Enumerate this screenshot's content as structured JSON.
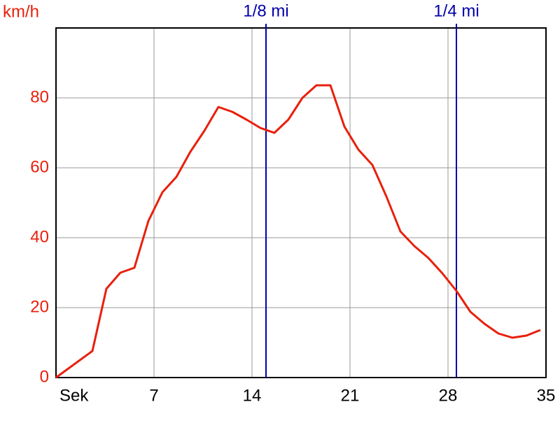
{
  "chart_data": {
    "type": "line",
    "y_label": "km/h",
    "x": [
      0,
      2.6,
      3.6,
      4.6,
      5.6,
      6.6,
      7.6,
      8.6,
      9.6,
      10.6,
      11.6,
      12.6,
      13.6,
      14.6,
      15.6,
      16.6,
      17.6,
      18.6,
      19.6,
      20.6,
      21.6,
      22.6,
      23.6,
      24.6,
      25.6,
      26.6,
      27.6,
      28.6,
      29.6,
      30.6,
      31.6,
      32.6,
      33.6,
      34.6
    ],
    "series": [
      {
        "color": "#e8200c",
        "values": [
          0,
          7.6,
          25.4,
          30,
          31.4,
          44.8,
          53,
          57.4,
          64.6,
          70.6,
          77.4,
          76,
          73.8,
          71.4,
          70,
          73.8,
          80,
          83.6,
          83.6,
          71.8,
          65.2,
          60.8,
          51.8,
          41.8,
          37.6,
          34.2,
          29.8,
          24.8,
          18.8,
          15.4,
          12.6,
          11.4,
          12,
          13.6
        ]
      }
    ],
    "xlim": [
      0,
      35
    ],
    "xticks": [
      {
        "value": 0,
        "label": "Sek"
      },
      7,
      14,
      21,
      28,
      35
    ],
    "ylim": [
      0,
      100
    ],
    "yticks": [
      0,
      20,
      40,
      60,
      80
    ],
    "grid": true,
    "markers": [
      {
        "label": "1/8 mi",
        "x": 15
      },
      {
        "label": "1/4 mi",
        "x": 28.6
      }
    ],
    "marker_color": "#0000aa",
    "y_tick_color": "#e8200c"
  }
}
